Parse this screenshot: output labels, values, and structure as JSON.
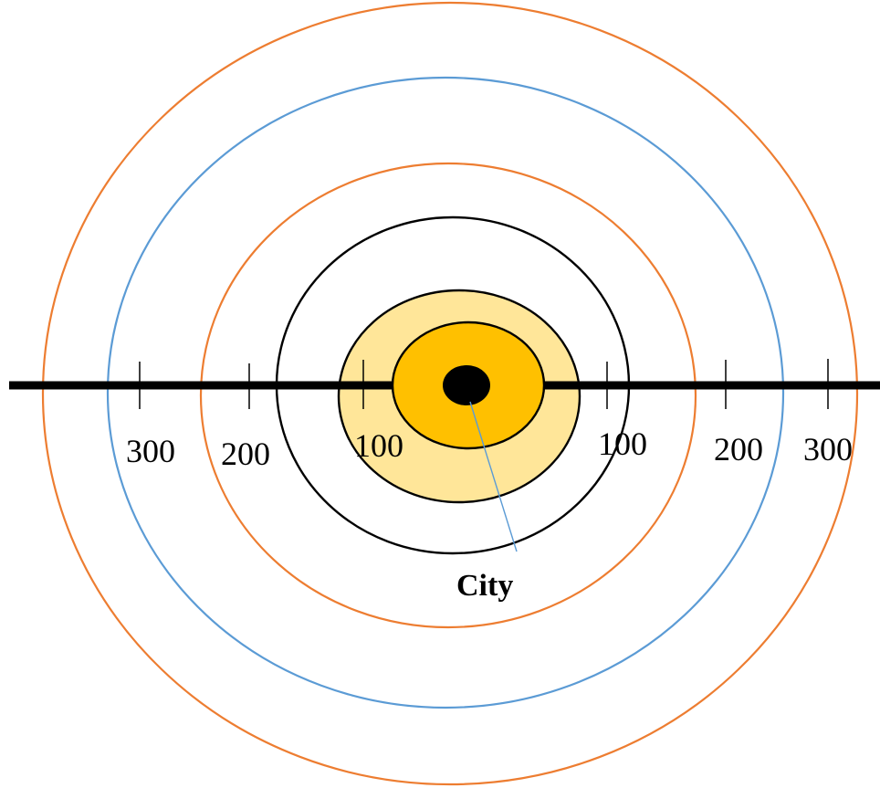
{
  "diagram": {
    "city_label": "City",
    "left_labels": [
      "300",
      "200",
      "100"
    ],
    "right_labels": [
      "100",
      "200",
      "300"
    ]
  },
  "colors": {
    "outer_ring": "#ED7D31",
    "blue_ring": "#5B9BD5",
    "middle_orange_ring": "#ED7D31",
    "black_ring": "#000000",
    "light_fill": "#FFE699",
    "inner_fill": "#FFC000",
    "center_dot": "#000000",
    "axis": "#000000",
    "pointer": "#5B9BD5"
  }
}
